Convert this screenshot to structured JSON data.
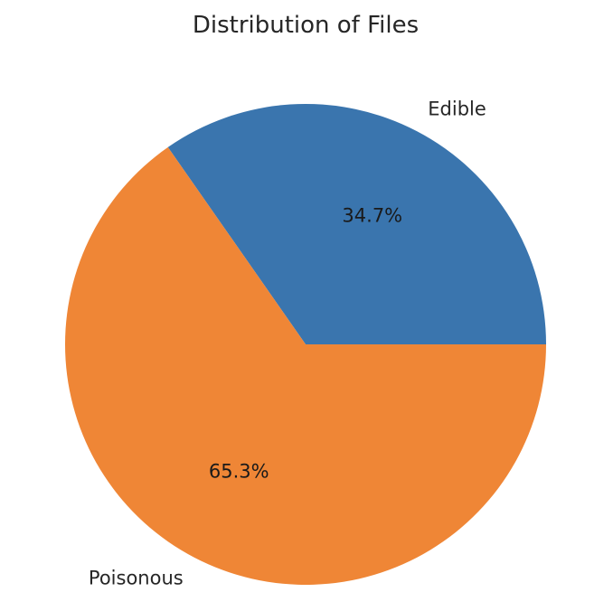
{
  "chart_data": {
    "type": "pie",
    "title": "Distribution of Files",
    "categories": [
      "Edible",
      "Poisonous"
    ],
    "values": [
      34.7,
      65.3
    ],
    "value_labels": [
      "34.7%",
      "65.3%"
    ],
    "colors": [
      "#3a75ae",
      "#ef8636"
    ],
    "start_angle": 0,
    "direction": "counterclockwise",
    "legend": "none"
  }
}
